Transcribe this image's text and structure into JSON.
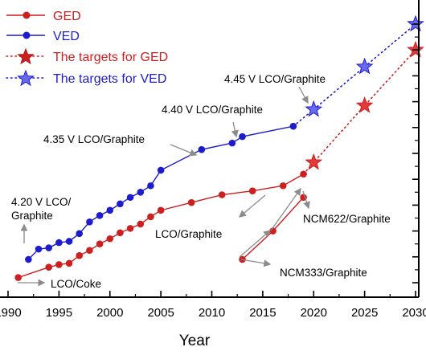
{
  "chart_data": {
    "type": "line",
    "xlabel": "Year",
    "ylabel": "",
    "xlim": [
      1990,
      2030
    ],
    "ylim": [
      0,
      100
    ],
    "x_ticks": [
      1990,
      1995,
      2000,
      2005,
      2010,
      2015,
      2020,
      2025,
      2030
    ],
    "x_tick_labels": [
      "1990",
      "1995",
      "2000",
      "2005",
      "2010",
      "2015",
      "2020",
      "2025",
      "2030"
    ],
    "colors": {
      "red": "#cc1f1f",
      "blue": "#1c1ccc",
      "gray": "#8c8c8c"
    },
    "legend": {
      "placement": "top-left",
      "entries": [
        {
          "label": "GED",
          "color": "#cc1f1f",
          "marker": "circle",
          "line": "solid"
        },
        {
          "label": "VED",
          "color": "#1c1ccc",
          "marker": "circle",
          "line": "solid"
        },
        {
          "label": "The targets for GED",
          "color": "#cc1f1f",
          "marker": "star",
          "line": "dotted"
        },
        {
          "label": "The targets for VED",
          "color": "#1c1ccc",
          "marker": "star",
          "line": "dotted"
        }
      ]
    },
    "series": [
      {
        "name": "GED",
        "color": "#cc1f1f",
        "marker": "circle",
        "x": [
          1991,
          1994,
          1995,
          1996,
          1997,
          1998,
          1999,
          2000,
          2001,
          2002,
          2003,
          2004,
          2005,
          2008,
          2011,
          2014,
          2017,
          2019
        ],
        "y": [
          2,
          6,
          7,
          7.5,
          10.5,
          12.5,
          15,
          17,
          19.3,
          21,
          22.7,
          25.5,
          28,
          31,
          34,
          35.5,
          37.5,
          42
        ]
      },
      {
        "name": "VED",
        "color": "#1c1ccc",
        "marker": "circle",
        "x": [
          1992,
          1993,
          1994,
          1995,
          1996,
          1997,
          1998,
          1999,
          2000,
          2001,
          2002,
          2003,
          2004,
          2005,
          2009,
          2012,
          2013,
          2018
        ],
        "y": [
          9,
          13,
          13.5,
          15.5,
          16,
          19,
          23.5,
          26,
          28,
          30.5,
          33,
          35,
          37.5,
          43.5,
          51.5,
          54,
          56.5,
          60.5
        ]
      },
      {
        "name": "The targets for GED",
        "color": "#cc1f1f",
        "marker": "star",
        "dotted_from": {
          "x": 2019,
          "y": 42
        },
        "x": [
          2020,
          2025,
          2030
        ],
        "y": [
          46.5,
          68.5,
          90
        ]
      },
      {
        "name": "The targets for VED",
        "color": "#1c1ccc",
        "marker": "star",
        "dotted_from": {
          "x": 2018,
          "y": 60.5
        },
        "x": [
          2020,
          2025,
          2030
        ],
        "y": [
          67,
          83.5,
          100
        ]
      },
      {
        "name": "NCM",
        "color": "#cc1f1f",
        "marker": "circle",
        "x": [
          2013,
          2016,
          2019
        ],
        "y": [
          9,
          20,
          33
        ]
      }
    ],
    "annotations": [
      {
        "lines": [
          "4.20 V LCO/",
          "Graphite"
        ]
      },
      {
        "lines": [
          "4.35 V LCO/Graphite"
        ]
      },
      {
        "lines": [
          "4.40 V LCO/Graphite"
        ]
      },
      {
        "lines": [
          "4.45 V LCO/Graphite"
        ]
      },
      {
        "lines": [
          "LCO/Coke"
        ]
      },
      {
        "lines": [
          "LCO/Graphite"
        ]
      },
      {
        "lines": [
          "NCM622/Graphite"
        ]
      },
      {
        "lines": [
          "NCM333/Graphite"
        ]
      }
    ]
  }
}
